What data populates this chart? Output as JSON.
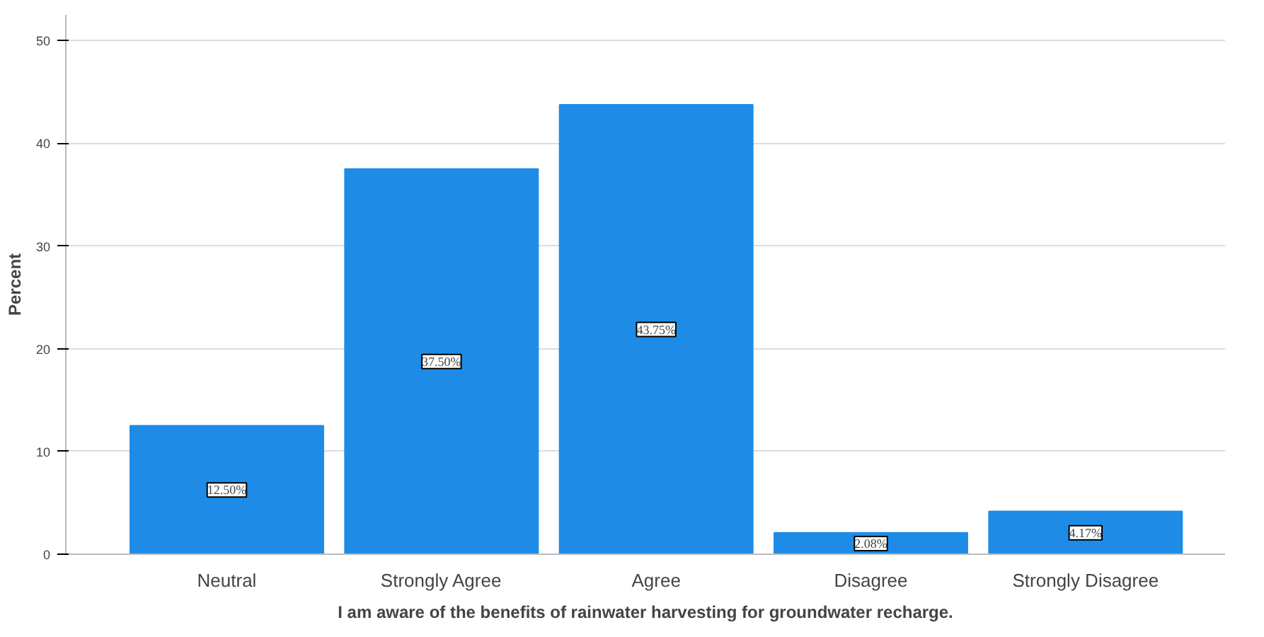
{
  "chart_data": {
    "type": "bar",
    "xlabel": "I am aware of the benefits of rainwater harvesting for groundwater recharge.",
    "ylabel": "Percent",
    "categories": [
      "Neutral",
      "Strongly Agree",
      "Agree",
      "Disagree",
      "Strongly Disagree"
    ],
    "values": [
      12.5,
      37.5,
      43.75,
      2.08,
      4.17
    ],
    "value_labels": [
      "12.50%",
      "37.50%",
      "43.75%",
      "2.08%",
      "4.17%"
    ],
    "color": "#1e8ce6",
    "ylim": [
      0,
      52.5
    ],
    "yticks": [
      0,
      10,
      20,
      30,
      40,
      50
    ],
    "grid": "y"
  }
}
